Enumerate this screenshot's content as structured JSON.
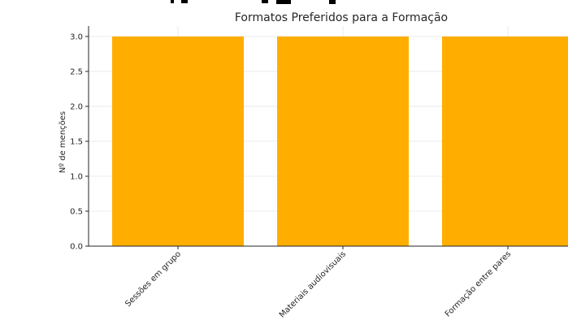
{
  "chart_data": {
    "type": "bar",
    "title": "Formatos Preferidos para a Formação",
    "xlabel": "",
    "ylabel": "Nº de menções",
    "categories": [
      "Sessões em grupo",
      "Materiais audiovisuais",
      "Formação entre pares"
    ],
    "values": [
      3,
      3,
      3
    ],
    "ylim": [
      0,
      3.15
    ],
    "yticks": [
      0.0,
      0.5,
      1.0,
      1.5,
      2.0,
      2.5,
      3.0
    ],
    "ytick_labels": [
      "0.0",
      "0.5",
      "1.0",
      "1.5",
      "2.0",
      "2.5",
      "3.0"
    ],
    "grid": true,
    "bar_color": "#FFAE00"
  }
}
